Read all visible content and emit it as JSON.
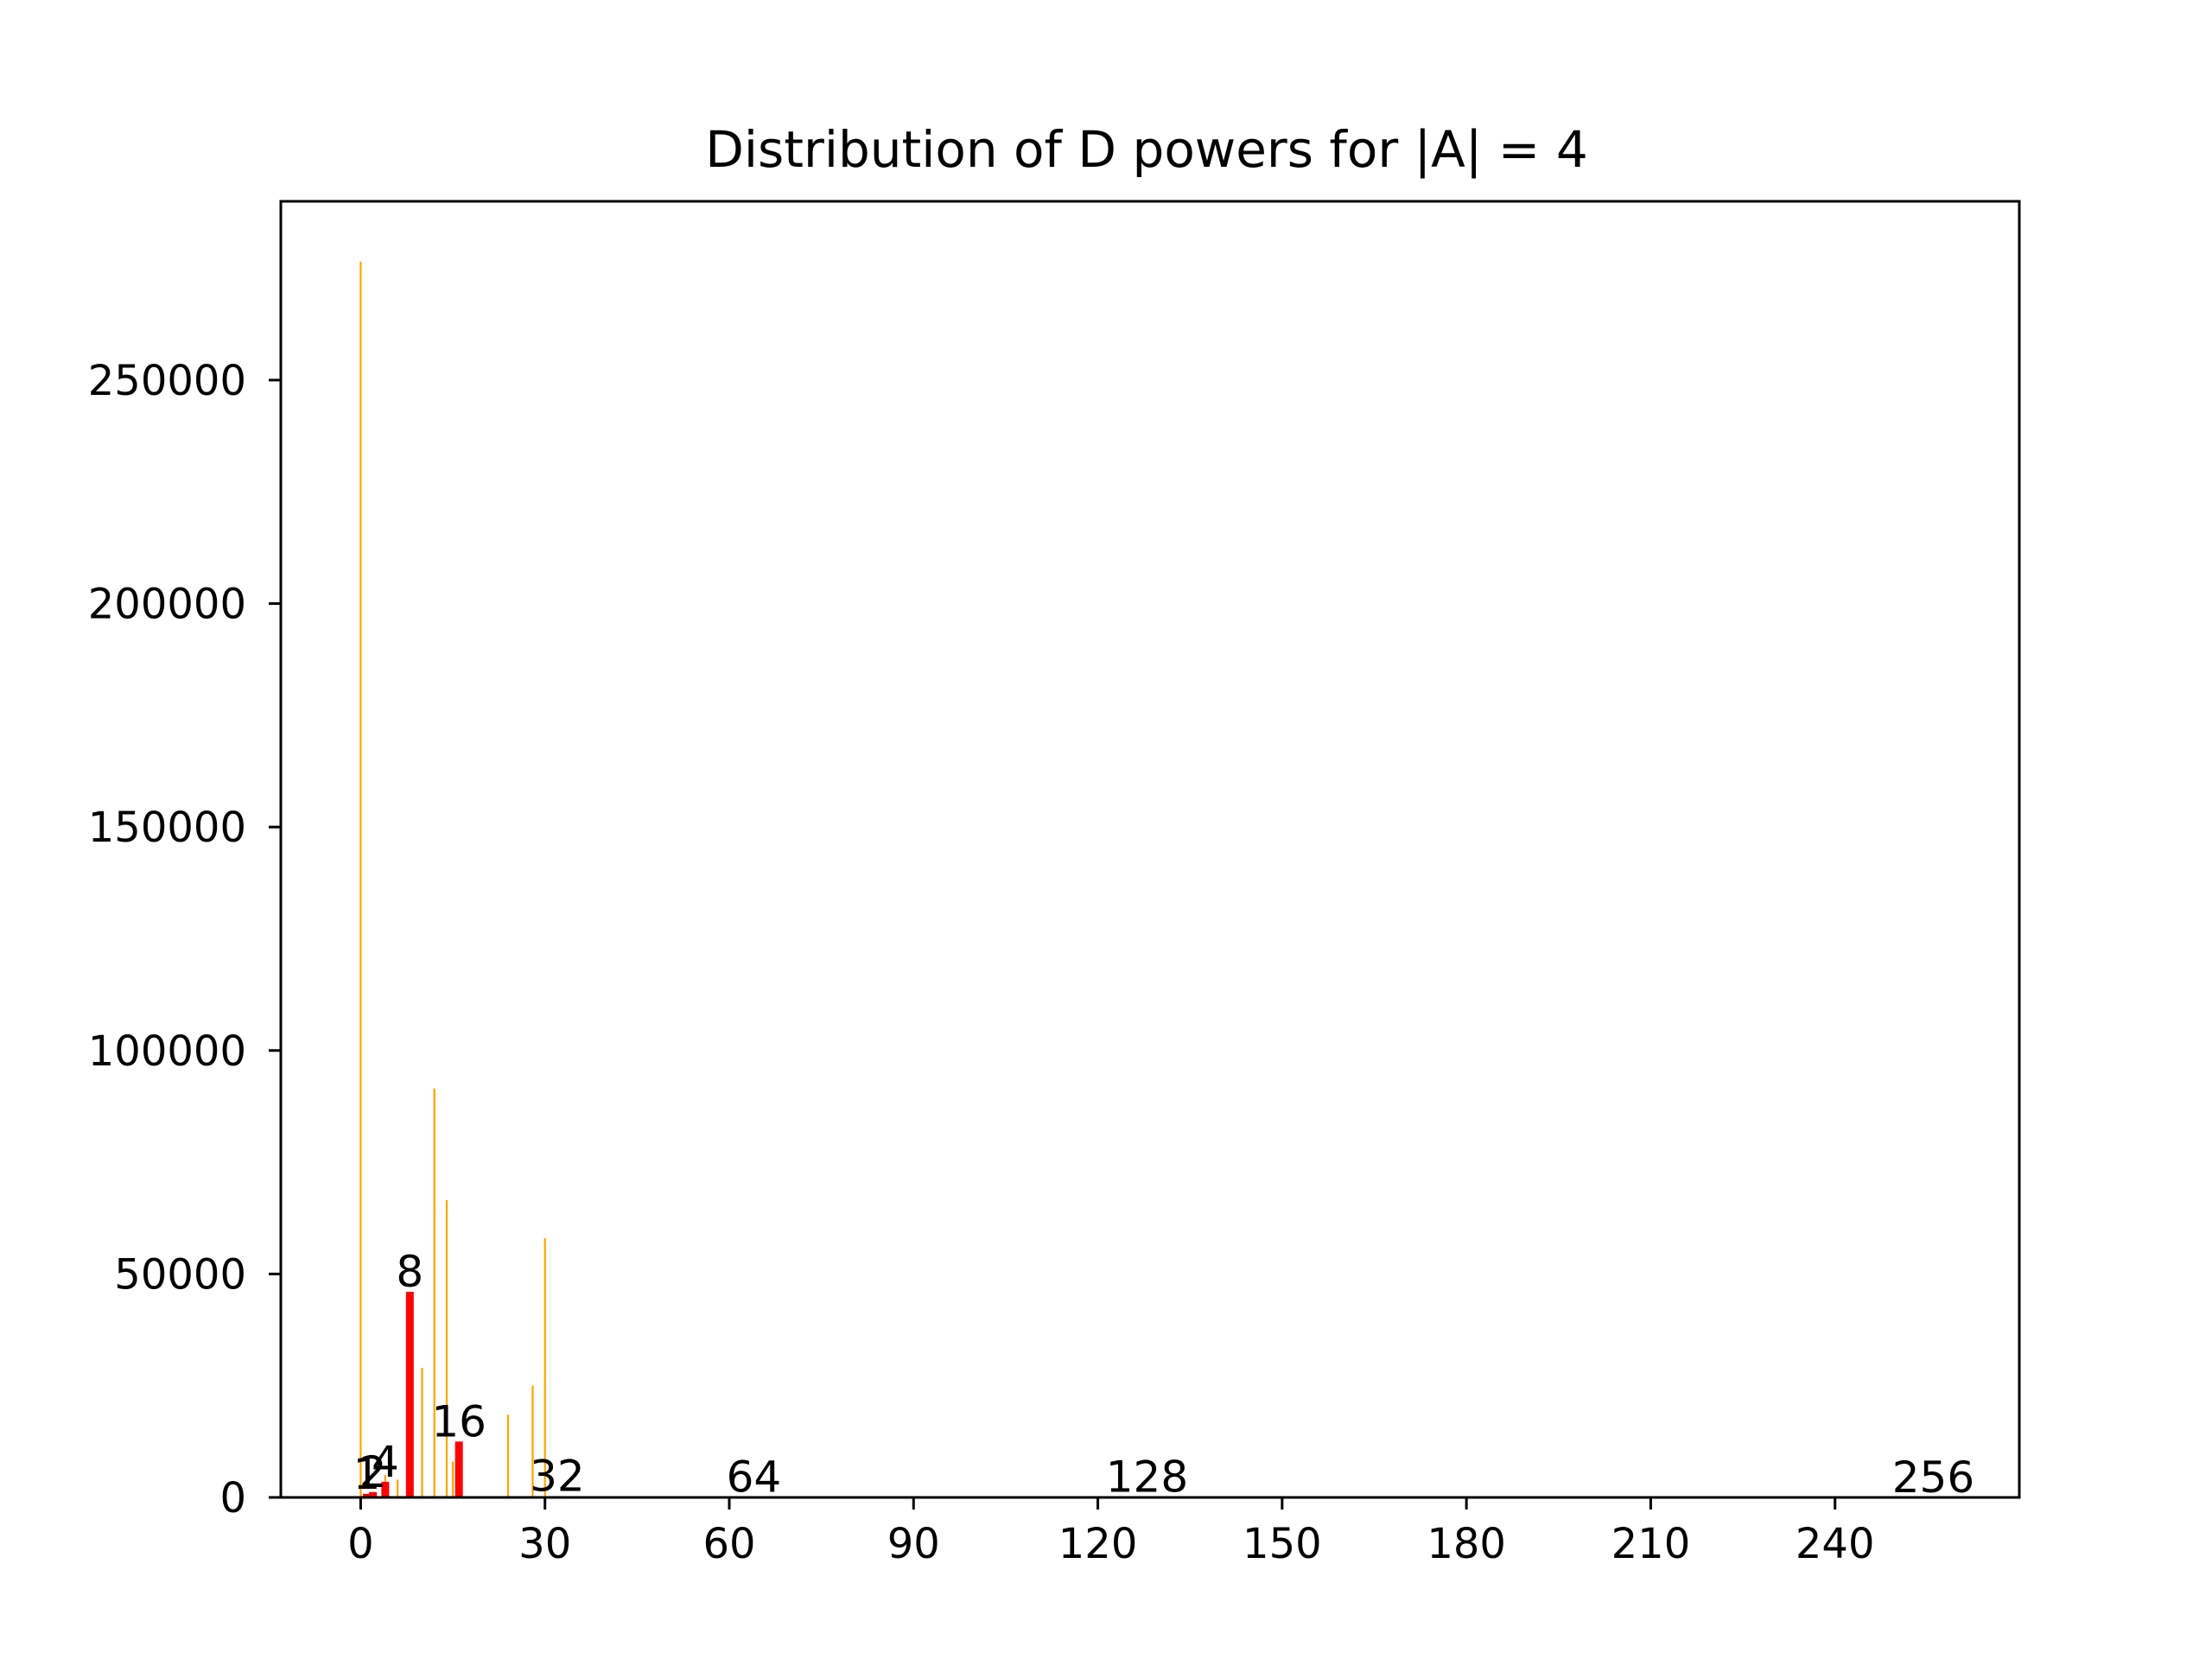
{
  "chart_data": {
    "type": "bar",
    "title": "Distribution of D powers for |A| = 4",
    "xlabel": "",
    "ylabel": "",
    "xlim": [
      -13,
      270
    ],
    "ylim": [
      0,
      290000
    ],
    "xticks": [
      0,
      30,
      60,
      90,
      120,
      150,
      180,
      210,
      240
    ],
    "yticks": [
      0,
      50000,
      100000,
      150000,
      200000,
      250000
    ],
    "grid": false,
    "colors": {
      "other": "#ffa500",
      "power_of_two": "#ff0000"
    },
    "series": [
      {
        "color": "#ffa500",
        "x": [
          0,
          4,
          6,
          10,
          12,
          14,
          15,
          24,
          28,
          30
        ],
        "values": [
          276500,
          5000,
          4000,
          29000,
          91500,
          66500,
          8000,
          18500,
          25000,
          58000
        ]
      },
      {
        "color": "#ff0000",
        "x": [
          1,
          2,
          4,
          8,
          16,
          32,
          64,
          128,
          256
        ],
        "values": [
          800,
          1200,
          3500,
          46000,
          12500,
          300,
          100,
          50,
          10
        ]
      }
    ],
    "annotations": [
      {
        "text": "1",
        "x": 1,
        "y": 800
      },
      {
        "text": "2",
        "x": 2,
        "y": 1200
      },
      {
        "text": "4",
        "x": 4,
        "y": 3500
      },
      {
        "text": "8",
        "x": 8,
        "y": 46000
      },
      {
        "text": "16",
        "x": 16,
        "y": 12500
      },
      {
        "text": "32",
        "x": 32,
        "y": 300
      },
      {
        "text": "64",
        "x": 64,
        "y": 100
      },
      {
        "text": "128",
        "x": 128,
        "y": 50
      },
      {
        "text": "256",
        "x": 256,
        "y": 10
      }
    ]
  }
}
